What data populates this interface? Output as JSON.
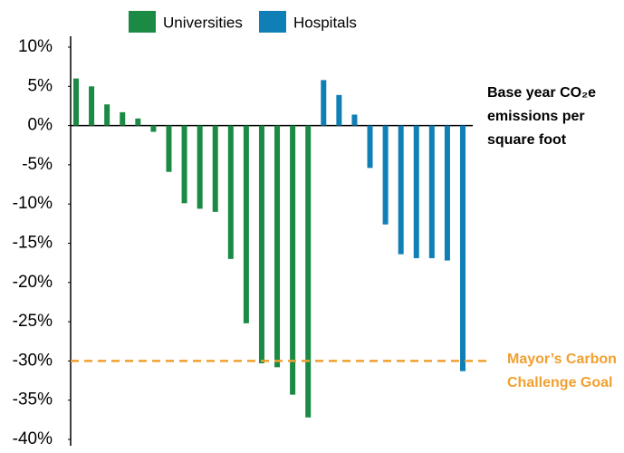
{
  "chart_data": {
    "type": "bar",
    "categories": [
      null,
      null,
      null,
      null,
      null,
      null,
      null,
      null,
      null,
      null,
      null,
      null,
      null,
      null,
      null,
      null,
      null,
      null,
      null,
      null,
      null,
      null,
      null,
      null,
      null,
      null
    ],
    "series": [
      {
        "name": "Universities",
        "color": "#1a8a44",
        "values": [
          6.0,
          5.0,
          2.7,
          1.7,
          0.9,
          -0.8,
          -5.9,
          -9.9,
          -10.6,
          -11.0,
          -17.0,
          -25.2,
          -30.3,
          -30.8,
          -34.3,
          -37.2,
          null,
          null,
          null,
          null,
          null,
          null,
          null,
          null,
          null,
          null
        ]
      },
      {
        "name": "Hospitals",
        "color": "#0f7fb5",
        "values": [
          null,
          null,
          null,
          null,
          null,
          null,
          null,
          null,
          null,
          null,
          null,
          null,
          null,
          null,
          null,
          null,
          5.8,
          3.9,
          1.4,
          -5.4,
          -12.6,
          -16.4,
          -16.9,
          -16.9,
          -17.2,
          -31.3
        ]
      }
    ],
    "ylim": [
      -40,
      10
    ],
    "yticks": [
      {
        "value": 10,
        "label": "10%"
      },
      {
        "value": 5,
        "label": "5%"
      },
      {
        "value": 0,
        "label": "0%"
      },
      {
        "value": -5,
        "label": "-5%"
      },
      {
        "value": -10,
        "label": "-10%"
      },
      {
        "value": -15,
        "label": "-15%"
      },
      {
        "value": -20,
        "label": "-20%"
      },
      {
        "value": -25,
        "label": "-25%"
      },
      {
        "value": -30,
        "label": "-30%"
      },
      {
        "value": -35,
        "label": "-35%"
      },
      {
        "value": -40,
        "label": "-40%"
      }
    ],
    "grid": false,
    "legend": "top",
    "annotation": [
      "Base year CO₂e",
      "emissions per",
      "square foot"
    ],
    "goal": {
      "value": -30,
      "color": "#f0a030",
      "label": [
        "Mayor’s Carbon",
        "Challenge Goal"
      ]
    }
  }
}
